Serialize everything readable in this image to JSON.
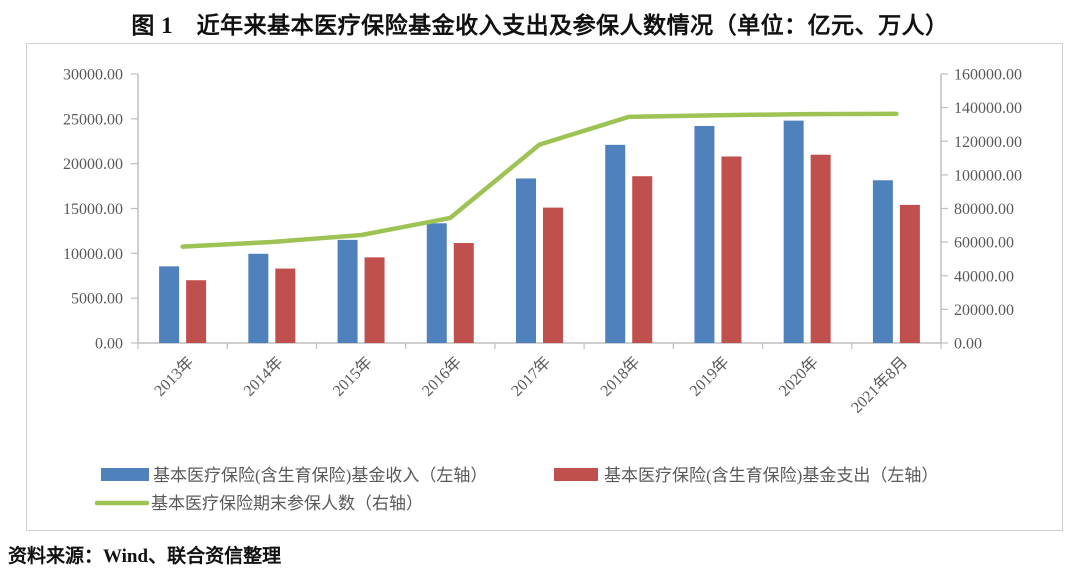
{
  "title": "图 1　近年来基本医疗保险基金收入支出及参保人数情况（单位：亿元、万人）",
  "source": "资料来源：Wind、联合资信整理",
  "colors": {
    "income_bar": "#4F81BD",
    "expense_bar": "#C0504D",
    "insured_line": "#9CC353",
    "axis_line": "#BFBFBF",
    "tick_text": "#595959",
    "box_border": "#CFCFCF"
  },
  "chart_data": {
    "type": "bar",
    "subtype": "bar+line combo",
    "categories": [
      "2013年",
      "2014年",
      "2015年",
      "2016年",
      "2017年",
      "2018年",
      "2019年",
      "2020年",
      "2021年8月"
    ],
    "series": [
      {
        "name": "基本医疗保险(含生育保险)基金收入（左轴）",
        "type": "bar",
        "axis": "left",
        "color": "#4F81BD",
        "values": [
          8550,
          9950,
          11500,
          13350,
          18350,
          22100,
          24200,
          24800,
          18150
        ]
      },
      {
        "name": "基本医疗保险(含生育保险)基金支出（左轴）",
        "type": "bar",
        "axis": "left",
        "color": "#C0504D",
        "values": [
          7000,
          8300,
          9550,
          11150,
          15100,
          18600,
          20800,
          21000,
          15400
        ]
      },
      {
        "name": "基本医疗保险期末参保人数（右轴）",
        "type": "line",
        "axis": "right",
        "color": "#9CC353",
        "values": [
          57300,
          60100,
          64200,
          74400,
          118000,
          134500,
          135500,
          136100,
          136300
        ]
      }
    ],
    "left_axis": {
      "min": 0,
      "max": 30000,
      "step": 5000,
      "format": "two-decimals"
    },
    "right_axis": {
      "min": 0,
      "max": 160000,
      "step": 20000,
      "format": "two-decimals"
    },
    "grid": false,
    "legend_position": "bottom-left",
    "xlabel": "",
    "ylabel_left": "亿元",
    "ylabel_right": "万人"
  }
}
